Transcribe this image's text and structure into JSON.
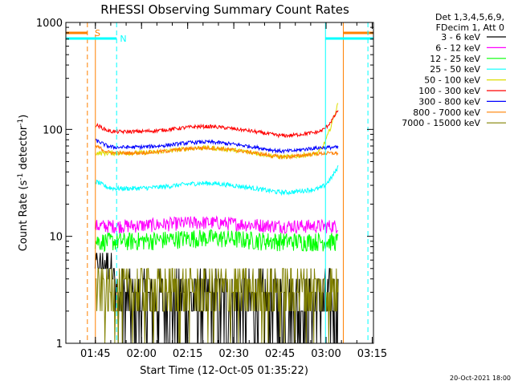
{
  "chart_data": {
    "type": "line",
    "title": "RHESSI Observing Summary Count Rates",
    "xlabel": "Start Time (12-Oct-05 01:35:22)",
    "ylabel_main": "Count Rate (s",
    "ylabel_sup1": "-1",
    "ylabel_mid": " detector",
    "ylabel_sup2": "-1",
    "ylabel_end": ")",
    "yscale": "log",
    "ylim": [
      1,
      1000
    ],
    "xlim_minutes": [
      0,
      100
    ],
    "x_ticks": [
      {
        "label": "01:45",
        "min": 9.6
      },
      {
        "label": "02:00",
        "min": 24.6
      },
      {
        "label": "02:15",
        "min": 39.6
      },
      {
        "label": "02:30",
        "min": 54.6
      },
      {
        "label": "02:45",
        "min": 69.6
      },
      {
        "label": "03:00",
        "min": 84.6
      },
      {
        "label": "03:15",
        "min": 99.6
      }
    ],
    "y_ticks": [
      {
        "label": "1",
        "value": 1
      },
      {
        "label": "10",
        "value": 10
      },
      {
        "label": "100",
        "value": 100
      },
      {
        "label": "1000",
        "value": 1000
      }
    ],
    "legend_header": [
      "Det 1,3,4,5,6,9,",
      "FDecim 1, Att 0"
    ],
    "series": [
      {
        "name": "3 - 6 keV",
        "color": "#000000",
        "base": 2.5,
        "noise": 0.9,
        "curve": "low"
      },
      {
        "name": "6 - 12 keV",
        "color": "#ff00ff",
        "base": 12.5,
        "noise": 0.15,
        "curve": "flat"
      },
      {
        "name": "12 - 25 keV",
        "color": "#00ff00",
        "base": 9.0,
        "noise": 0.2,
        "curve": "flat"
      },
      {
        "name": "25 - 50 keV",
        "color": "#00ffff",
        "base": 28,
        "noise": 0.05,
        "curve": "hump_rise"
      },
      {
        "name": "50 - 100 keV",
        "color": "#dddd00",
        "base": 60,
        "noise": 0.05,
        "curve": "hump_rise2"
      },
      {
        "name": "100 - 300 keV",
        "color": "#ff0000",
        "base": 95,
        "noise": 0.04,
        "curve": "hump_rise"
      },
      {
        "name": "300 - 800 keV",
        "color": "#0000ff",
        "base": 68,
        "noise": 0.04,
        "curve": "hump"
      },
      {
        "name": "800 - 7000 keV",
        "color": "#ff8000",
        "base": 60,
        "noise": 0.04,
        "curve": "hump"
      },
      {
        "name": "7000 - 15000 keV",
        "color": "#808000",
        "base": 3.2,
        "noise": 0.6,
        "curve": "low"
      }
    ],
    "data_span_minutes": [
      9.5,
      88.5
    ],
    "flags": [
      {
        "label": "S",
        "color": "#ff8000"
      },
      {
        "label": "N",
        "color": "#00ffff"
      }
    ],
    "grid": false,
    "legend_position": "right"
  },
  "footer": {
    "date": "20-Oct-2021 18:00"
  }
}
